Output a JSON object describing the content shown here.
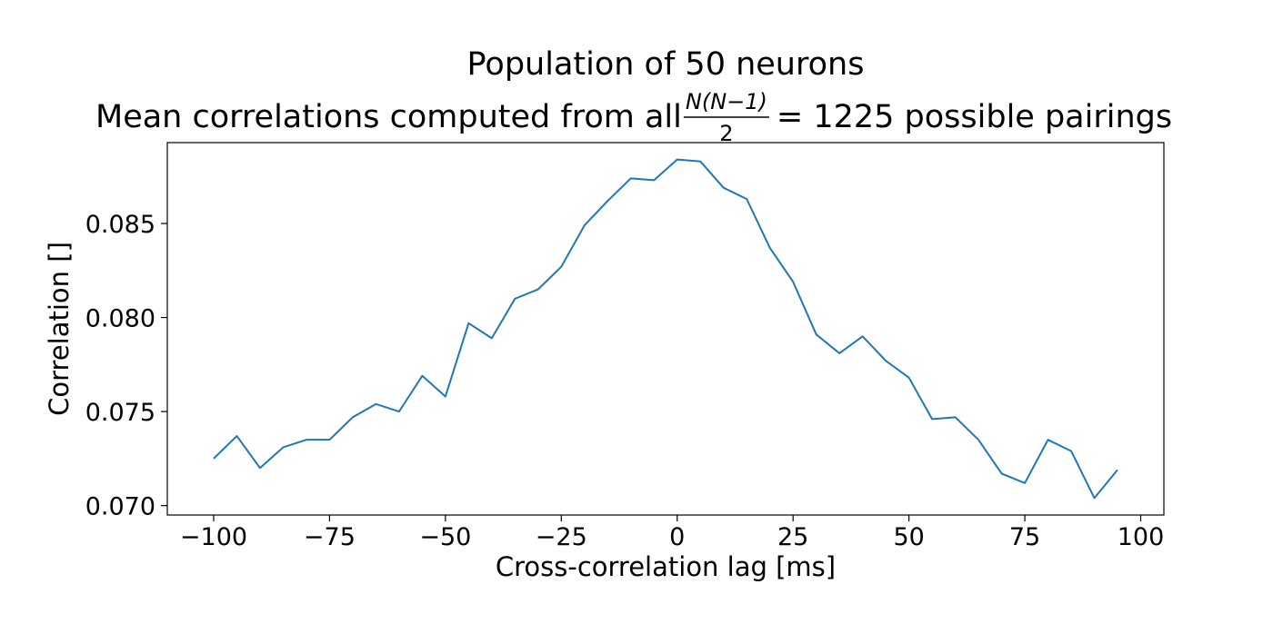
{
  "chart_data": {
    "type": "line",
    "title": "Population of 50 neurons",
    "subtitle_pre": "Mean correlations computed from all ",
    "subtitle_frac_num": "N(N−1)",
    "subtitle_frac_den": "2",
    "subtitle_post": "= 1225 possible pairings",
    "xlabel": "Cross-correlation lag [ms]",
    "ylabel": "Correlation []",
    "xlim": [
      -110,
      105
    ],
    "ylim": [
      0.0695,
      0.0893
    ],
    "xticks": [
      -100,
      -75,
      -50,
      -25,
      0,
      25,
      50,
      75,
      100
    ],
    "xtick_labels": [
      "−100",
      "−75",
      "−50",
      "−25",
      "0",
      "25",
      "50",
      "75",
      "100"
    ],
    "yticks": [
      0.07,
      0.075,
      0.08,
      0.085
    ],
    "ytick_labels": [
      "0.070",
      "0.075",
      "0.080",
      "0.085"
    ],
    "grid": false,
    "line_color": "#1f77b4",
    "series": [
      {
        "x": [
          -100,
          -95,
          -90,
          -85,
          -80,
          -75,
          -70,
          -65,
          -60,
          -55,
          -50,
          -45,
          -40,
          -35,
          -30,
          -25,
          -20,
          -15,
          -10,
          -5,
          0,
          5,
          10,
          15,
          20,
          25,
          30,
          35,
          40,
          45,
          50,
          55,
          60,
          65,
          70,
          75,
          80,
          85,
          90,
          95
        ],
        "values": [
          0.0725,
          0.0737,
          0.072,
          0.0731,
          0.0735,
          0.0735,
          0.0747,
          0.0754,
          0.075,
          0.0769,
          0.0758,
          0.0797,
          0.0789,
          0.081,
          0.0815,
          0.0827,
          0.0849,
          0.0862,
          0.0874,
          0.0873,
          0.0884,
          0.0883,
          0.0869,
          0.0863,
          0.0837,
          0.0819,
          0.0791,
          0.0781,
          0.079,
          0.0777,
          0.0768,
          0.0746,
          0.0747,
          0.0735,
          0.0717,
          0.0712,
          0.0735,
          0.0729,
          0.0704,
          0.0719
        ]
      }
    ]
  }
}
